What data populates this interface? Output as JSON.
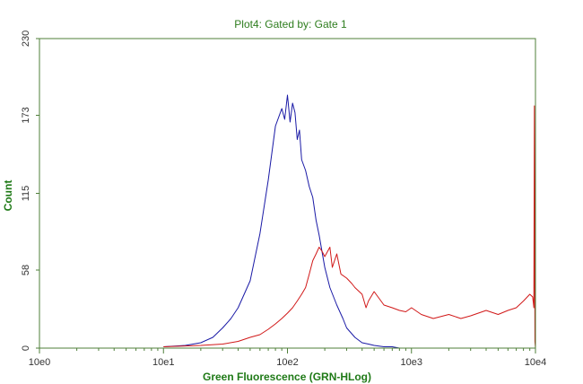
{
  "chart_data": {
    "type": "line",
    "title": "Plot4:  Gated by: Gate 1",
    "xlabel": "Green Fluorescence (GRN-HLog)",
    "ylabel": "Count",
    "x_scale": "log",
    "xlim": [
      1,
      10000
    ],
    "ylim": [
      0,
      230
    ],
    "x_ticks": [
      "10e0",
      "10e1",
      "10e2",
      "10e3",
      "10e4"
    ],
    "y_ticks": [
      "0",
      "58",
      "115",
      "173",
      "230"
    ],
    "grid": false,
    "series": [
      {
        "color": "#1a1aa6",
        "x": [
          10,
          15,
          20,
          25,
          30,
          35,
          40,
          50,
          60,
          70,
          80,
          90,
          95,
          100,
          105,
          110,
          115,
          120,
          125,
          130,
          140,
          150,
          160,
          170,
          180,
          200,
          220,
          250,
          280,
          300,
          350,
          400,
          450,
          500,
          600,
          700,
          800
        ],
        "y": [
          1,
          2,
          4,
          8,
          15,
          22,
          30,
          50,
          85,
          125,
          165,
          178,
          170,
          188,
          168,
          182,
          175,
          155,
          162,
          140,
          132,
          120,
          112,
          95,
          84,
          60,
          45,
          32,
          22,
          15,
          8,
          4,
          3,
          2,
          1,
          1,
          0
        ]
      },
      {
        "color": "#d11818",
        "x": [
          10,
          20,
          30,
          40,
          50,
          60,
          70,
          80,
          90,
          100,
          110,
          120,
          130,
          140,
          150,
          160,
          170,
          180,
          190,
          200,
          220,
          230,
          250,
          270,
          300,
          330,
          350,
          400,
          430,
          450,
          500,
          600,
          700,
          800,
          900,
          1000,
          1200,
          1500,
          2000,
          2500,
          3000,
          4000,
          5000,
          6000,
          7000,
          8000,
          9000,
          9500,
          9700,
          9800,
          9900,
          10000
        ],
        "y": [
          1,
          2,
          3,
          5,
          8,
          10,
          14,
          18,
          22,
          26,
          30,
          35,
          40,
          45,
          55,
          65,
          70,
          75,
          72,
          68,
          75,
          60,
          70,
          55,
          52,
          48,
          45,
          40,
          30,
          35,
          42,
          32,
          30,
          28,
          27,
          30,
          25,
          22,
          25,
          22,
          24,
          28,
          25,
          28,
          30,
          35,
          40,
          38,
          30,
          180,
          5,
          0
        ]
      }
    ]
  }
}
